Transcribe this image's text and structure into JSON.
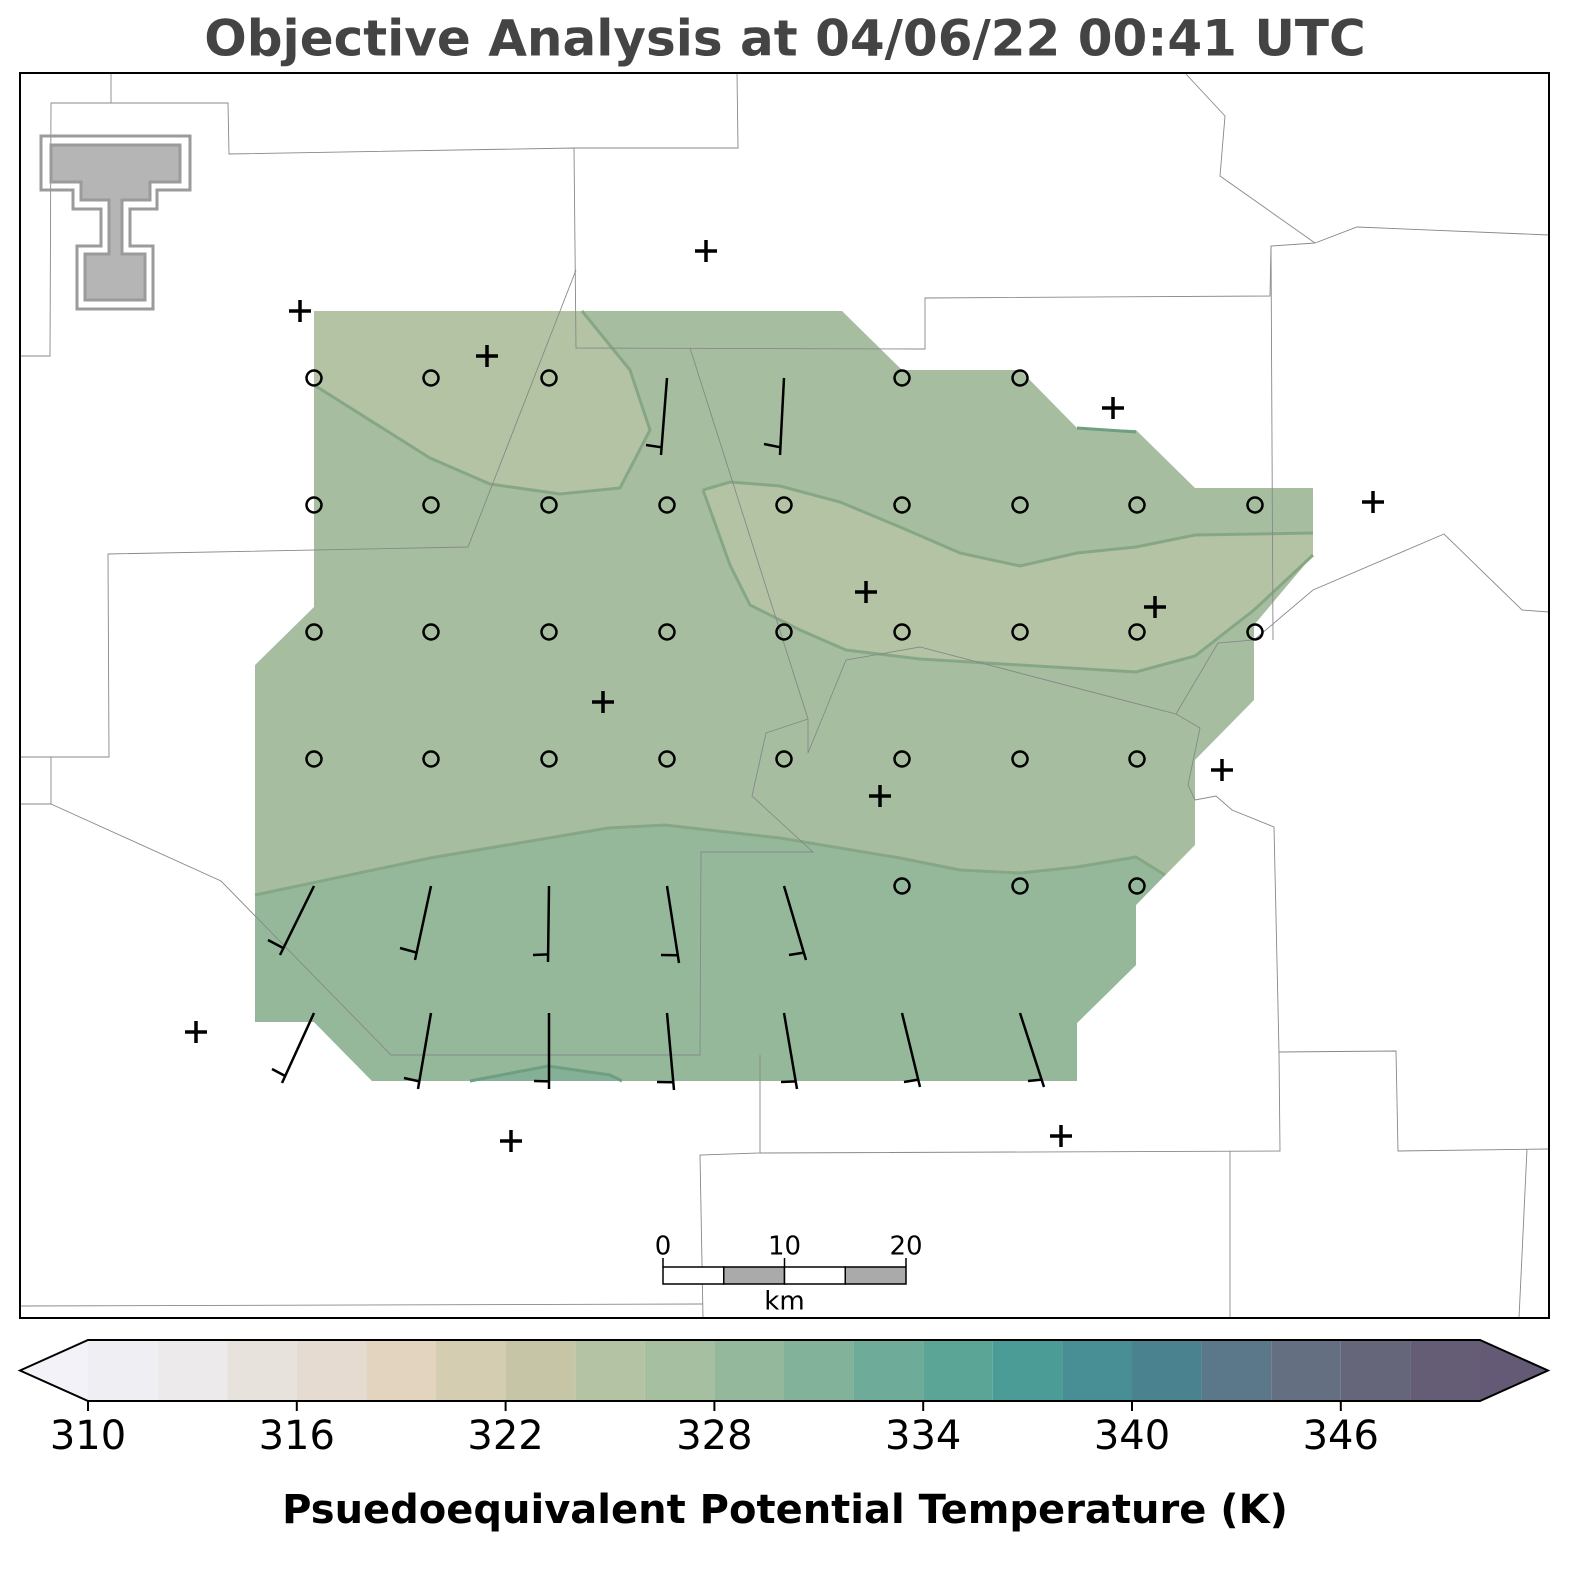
{
  "title": "Objective Analysis at 04/06/22 00:41 UTC",
  "colorbar": {
    "label": "Psuedoequivalent Potential Temperature (K)",
    "levels": [
      310,
      312,
      314,
      316,
      318,
      320,
      322,
      324,
      326,
      328,
      330,
      332,
      334,
      336,
      338,
      340,
      342,
      344,
      346,
      348,
      350
    ],
    "colors": [
      "#efeef2",
      "#eceaea",
      "#e8e2dd",
      "#e5dbd0",
      "#e2d4bf",
      "#d5cdb2",
      "#c6c6a7",
      "#b5c3a5",
      "#a5bfa0",
      "#94b89b",
      "#82b39a",
      "#6eab98",
      "#5aa596",
      "#4b9c96",
      "#478f94",
      "#4b8290",
      "#5a7889",
      "#646f82",
      "#65667a",
      "#655d75"
    ],
    "under_color": "#f2f2f8",
    "over_color": "#645a75",
    "ticks": [
      310,
      316,
      322,
      328,
      334,
      340,
      346
    ]
  },
  "scale_bar": {
    "ticks": [
      0,
      10,
      20
    ],
    "unit": "km"
  }
}
